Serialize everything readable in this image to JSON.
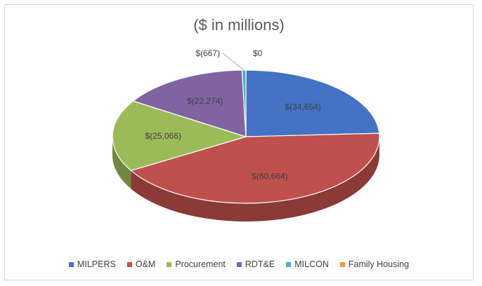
{
  "chart_data": {
    "type": "pie",
    "title": "($ in millions)",
    "slices": [
      {
        "name": "MILPERS",
        "value": 34654,
        "label": "$(34,654)",
        "color": "#4472C4"
      },
      {
        "name": "O&M",
        "value": 60664,
        "label": "$(60,664)",
        "color": "#C0504D"
      },
      {
        "name": "Procurement",
        "value": 25066,
        "label": "$(25,066)",
        "color": "#9BBB59"
      },
      {
        "name": "RDT&E",
        "value": 22274,
        "label": "$(22,274)",
        "color": "#8064A2"
      },
      {
        "name": "MILCON",
        "value": 667,
        "label": "$(667)",
        "color": "#4BACC6"
      },
      {
        "name": "Family Housing",
        "value": 0,
        "label": "$0",
        "color": "#F79646"
      }
    ],
    "style": "3d-pie",
    "legend_position": "bottom"
  }
}
